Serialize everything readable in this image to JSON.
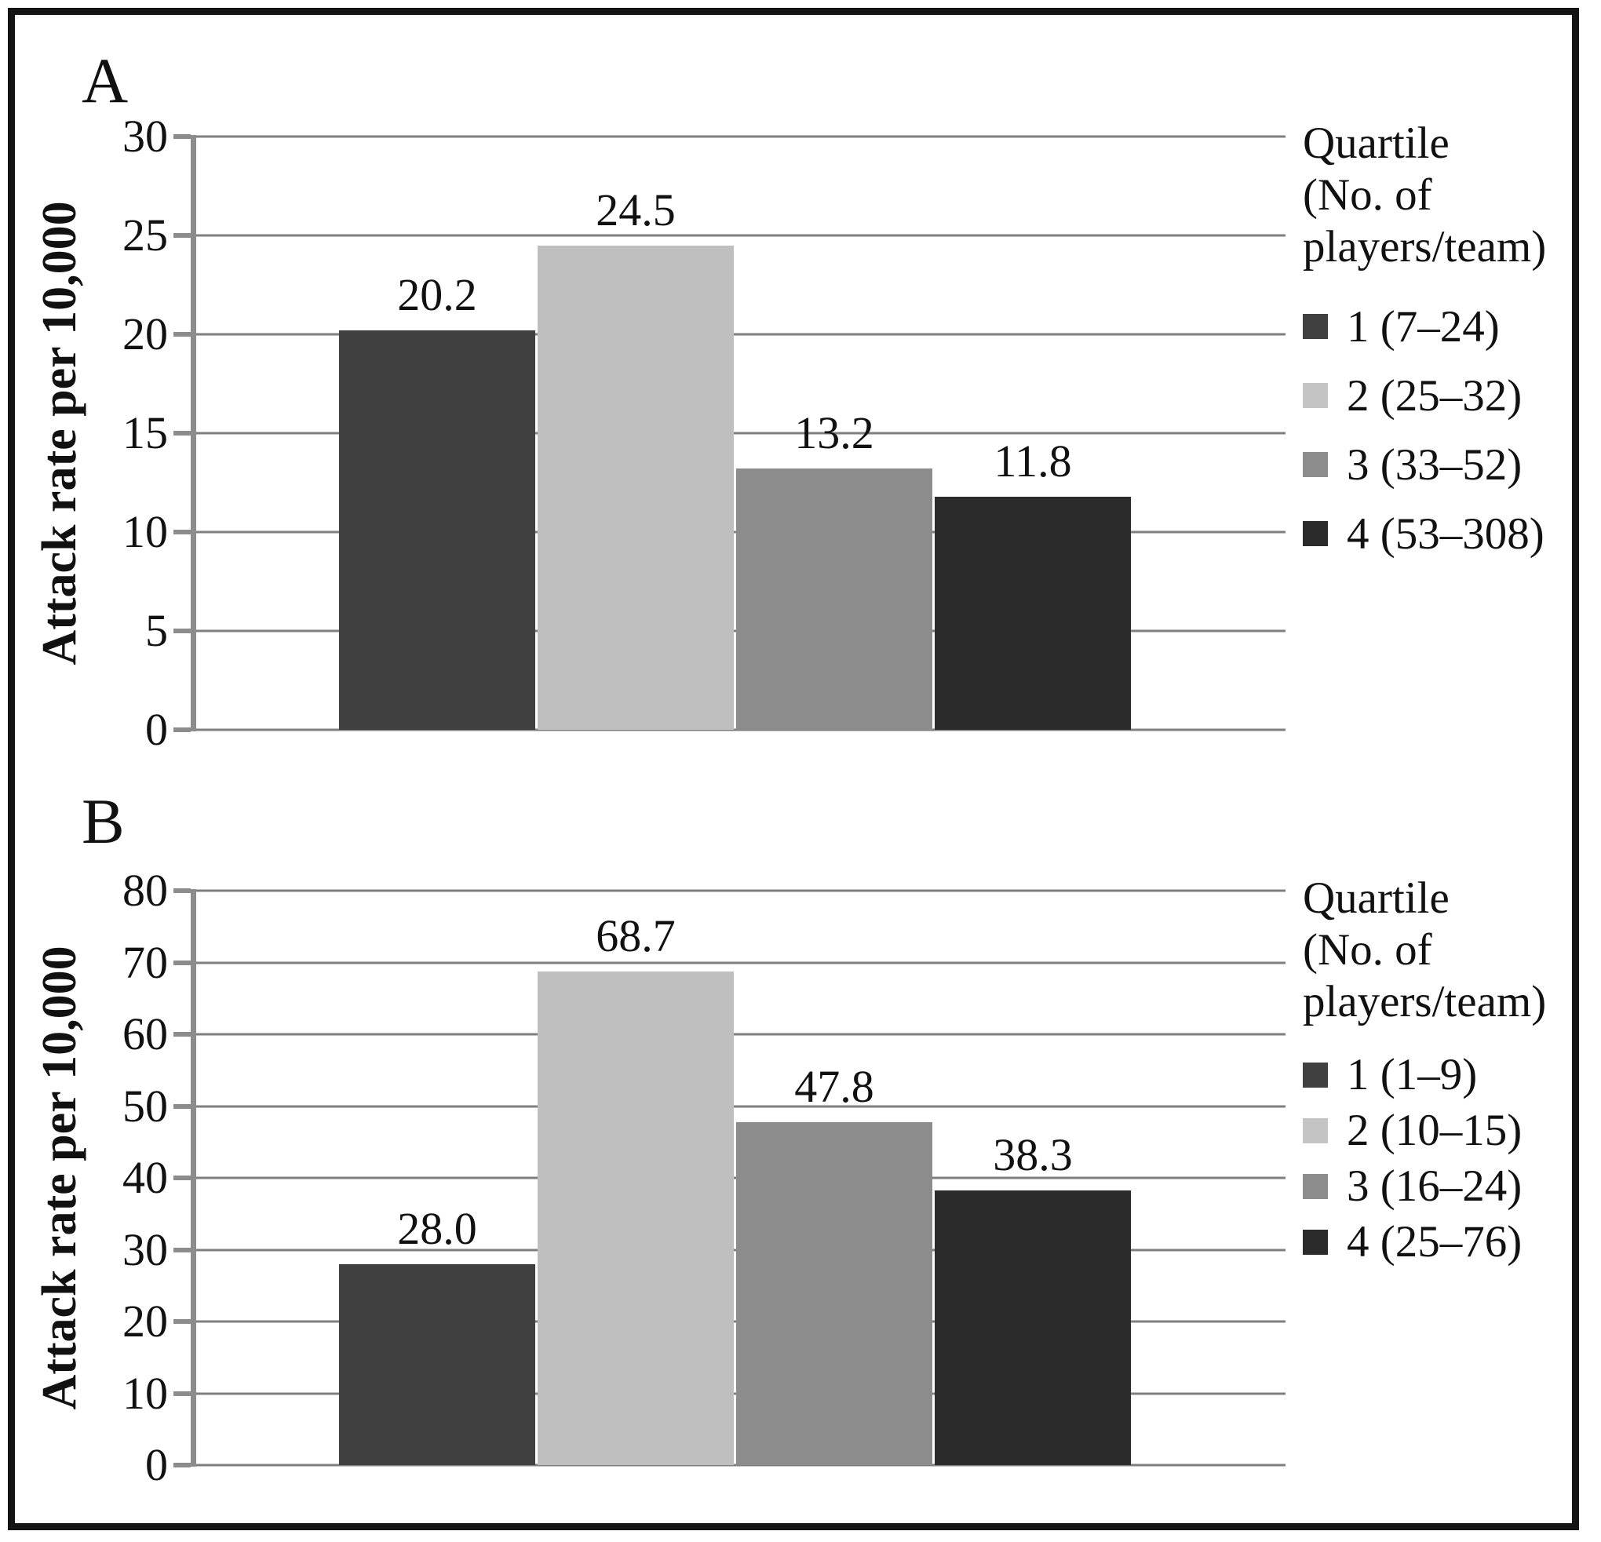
{
  "figure": {
    "style": {
      "frame_color": "#141414",
      "background": "#ffffff",
      "gridline_color": "#7f7f7f",
      "axis_color": "#8c8c8c",
      "text_color": "#111111"
    }
  },
  "chart_data": [
    {
      "type": "bar",
      "panel_label": "A",
      "title": "",
      "xlabel": "",
      "ylabel": "Attack rate per 10,000",
      "ylim": [
        0,
        30
      ],
      "ytick_step": 5,
      "yticks": [
        30,
        25,
        20,
        15,
        10,
        5,
        0
      ],
      "grid": true,
      "categories": [
        "1 (7–24)",
        "2 (25–32)",
        "3 (33–52)",
        "4 (53–308)"
      ],
      "values": [
        20.2,
        24.5,
        13.2,
        11.8
      ],
      "value_labels": [
        "20.2",
        "24.5",
        "13.2",
        "11.8"
      ],
      "bar_colors": [
        "#404040",
        "#bfbfbf",
        "#8c8c8c",
        "#2b2b2b"
      ],
      "legend": {
        "position": "right",
        "title": "Quartile\n(No. of\nplayers/team)",
        "items": [
          {
            "label": "1 (7–24)",
            "color": "#404040"
          },
          {
            "label": "2 (25–32)",
            "color": "#c4c4c4"
          },
          {
            "label": "3 (33–52)",
            "color": "#8c8c8c"
          },
          {
            "label": "4 (53–308)",
            "color": "#2b2b2b"
          }
        ]
      }
    },
    {
      "type": "bar",
      "panel_label": "B",
      "title": "",
      "xlabel": "",
      "ylabel": "Attack rate per 10,000",
      "ylim": [
        0,
        80
      ],
      "ytick_step": 10,
      "yticks": [
        80,
        70,
        60,
        50,
        40,
        30,
        20,
        10,
        0
      ],
      "grid": true,
      "categories": [
        "1 (1–9)",
        "2 (10–15)",
        "3 (16–24)",
        "4 (25–76)"
      ],
      "values": [
        28.0,
        68.7,
        47.8,
        38.3
      ],
      "value_labels": [
        "28.0",
        "68.7",
        "47.8",
        "38.3"
      ],
      "bar_colors": [
        "#404040",
        "#bfbfbf",
        "#8c8c8c",
        "#2b2b2b"
      ],
      "legend": {
        "position": "right",
        "title": "Quartile\n(No. of\nplayers/team)",
        "items": [
          {
            "label": "1 (1–9)",
            "color": "#404040"
          },
          {
            "label": "2 (10–15)",
            "color": "#c4c4c4"
          },
          {
            "label": "3 (16–24)",
            "color": "#8c8c8c"
          },
          {
            "label": "4 (25–76)",
            "color": "#2b2b2b"
          }
        ]
      }
    }
  ]
}
